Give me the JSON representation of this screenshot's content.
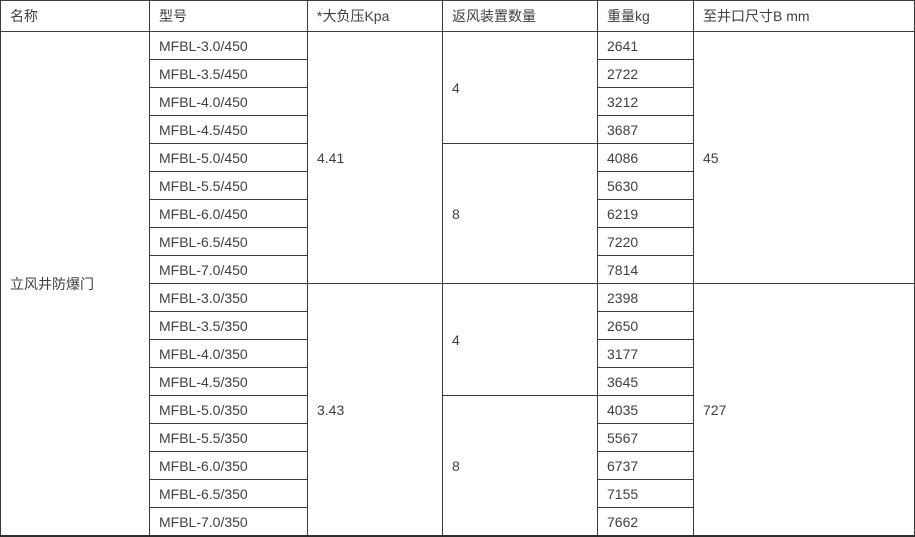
{
  "colors": {
    "border": "#3b3b3b",
    "text": "#404040",
    "background": "#ffffff"
  },
  "table": {
    "headers": {
      "name": "名称",
      "model": "型号",
      "pressure": "*大负压Kpa",
      "fan_count": "返风装置数量",
      "weight": "重量kg",
      "wellhead_size": "至井口尺寸B mm"
    },
    "product_name": "立风井防爆门",
    "groups": [
      {
        "pressure": "4.41",
        "wellhead_size": "45",
        "subgroups": [
          {
            "fan_count": "4",
            "rows": [
              {
                "model": "MFBL-3.0/450",
                "weight": "2641"
              },
              {
                "model": "MFBL-3.5/450",
                "weight": "2722"
              },
              {
                "model": "MFBL-4.0/450",
                "weight": "3212"
              },
              {
                "model": "MFBL-4.5/450",
                "weight": "3687"
              }
            ]
          },
          {
            "fan_count": "8",
            "rows": [
              {
                "model": "MFBL-5.0/450",
                "weight": "4086"
              },
              {
                "model": "MFBL-5.5/450",
                "weight": "5630"
              },
              {
                "model": "MFBL-6.0/450",
                "weight": "6219"
              },
              {
                "model": "MFBL-6.5/450",
                "weight": "7220"
              },
              {
                "model": "MFBL-7.0/450",
                "weight": "7814"
              }
            ]
          }
        ]
      },
      {
        "pressure": "3.43",
        "wellhead_size": "727",
        "subgroups": [
          {
            "fan_count": "4",
            "rows": [
              {
                "model": "MFBL-3.0/350",
                "weight": "2398"
              },
              {
                "model": "MFBL-3.5/350",
                "weight": "2650"
              },
              {
                "model": "MFBL-4.0/350",
                "weight": "3177"
              },
              {
                "model": "MFBL-4.5/350",
                "weight": "3645"
              }
            ]
          },
          {
            "fan_count": "8",
            "rows": [
              {
                "model": "MFBL-5.0/350",
                "weight": "4035"
              },
              {
                "model": "MFBL-5.5/350",
                "weight": "5567"
              },
              {
                "model": "MFBL-6.0/350",
                "weight": "6737"
              },
              {
                "model": "MFBL-6.5/350",
                "weight": "7155"
              },
              {
                "model": "MFBL-7.0/350",
                "weight": "7662"
              }
            ]
          }
        ]
      }
    ]
  }
}
